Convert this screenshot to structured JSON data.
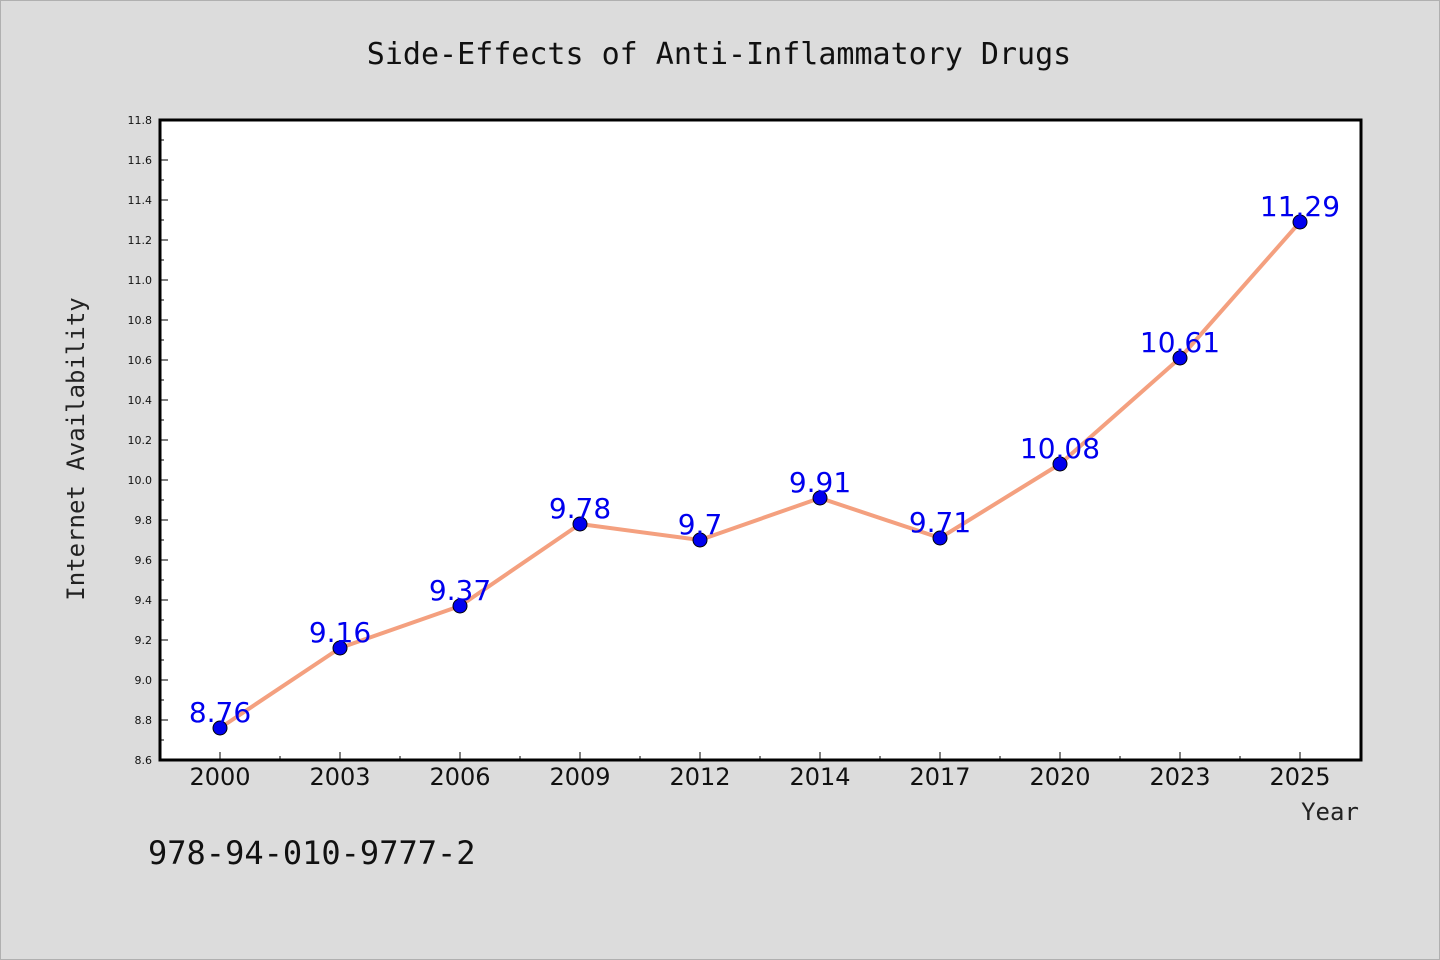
{
  "chart_data": {
    "type": "line",
    "title": "Side-Effects of Anti-Inflammatory Drugs",
    "xlabel": "Year",
    "ylabel": "Internet Availability",
    "categories": [
      "2000",
      "2003",
      "2006",
      "2009",
      "2012",
      "2014",
      "2017",
      "2020",
      "2023",
      "2025"
    ],
    "series": [
      {
        "values": [
          8.76,
          9.16,
          9.37,
          9.78,
          9.7,
          9.91,
          9.71,
          10.08,
          10.61,
          11.29
        ],
        "labels": [
          "8.76",
          "9.16",
          "9.37",
          "9.78",
          "9.7",
          "9.91",
          "9.71",
          "10.08",
          "10.61",
          "11.29"
        ],
        "line_color": "#f4a07f",
        "marker_color": "#0000ee",
        "label_color": "#0000ee"
      }
    ],
    "ylim": [
      8.6,
      11.8
    ],
    "yticks": [
      "8.6",
      "8.8",
      "9.0",
      "9.2",
      "9.4",
      "9.6",
      "9.8",
      "10.0",
      "10.2",
      "10.4",
      "10.6",
      "10.8",
      "11.0",
      "11.2",
      "11.4",
      "11.6",
      "11.8"
    ],
    "grid": false,
    "legend": "none"
  },
  "footnote": "978-94-010-9777-2",
  "colors": {
    "background": "#dcdcdc",
    "plot_background": "#ffffff"
  }
}
